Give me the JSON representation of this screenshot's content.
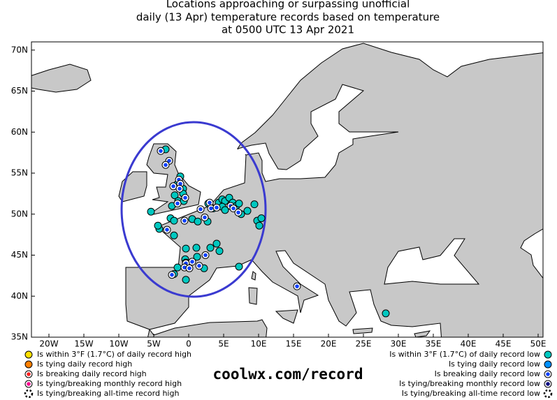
{
  "title": [
    "Locations approaching or surpassing unofficial",
    "daily (13 Apr) temperature records based on temperature",
    "at 0500 UTC 13 Apr 2021"
  ],
  "map": {
    "xlim": [
      -22.5,
      50.7
    ],
    "ylim": [
      35,
      71
    ],
    "xticks": [
      {
        "value": -20,
        "label": "20W"
      },
      {
        "value": -15,
        "label": "15W"
      },
      {
        "value": -10,
        "label": "10W"
      },
      {
        "value": -5,
        "label": "5W"
      },
      0,
      {
        "value": 5,
        "label": "5E"
      },
      {
        "value": 10,
        "label": "10E"
      },
      {
        "value": 15,
        "label": "15E"
      },
      {
        "value": 20,
        "label": "20E"
      },
      {
        "value": 25,
        "label": "25E"
      },
      {
        "value": 30,
        "label": "30E"
      },
      {
        "value": 35,
        "label": "35E"
      },
      {
        "value": 40,
        "label": "40E"
      },
      {
        "value": 45,
        "label": "45E"
      },
      {
        "value": 50,
        "label": "50E"
      }
    ],
    "yticks": [
      {
        "value": 70,
        "label": "70N"
      },
      {
        "value": 65,
        "label": "65N"
      },
      {
        "value": 60,
        "label": "60N"
      },
      {
        "value": 55,
        "label": "55N"
      },
      {
        "value": 50,
        "label": "50N"
      },
      {
        "value": 45,
        "label": "45N"
      },
      {
        "value": 40,
        "label": "40N"
      },
      {
        "value": 35,
        "label": "35N"
      }
    ]
  },
  "site": "coolwx.com/record",
  "legend": {
    "high": [
      {
        "label": "Is within 3°F (1.7°C) of daily record high",
        "color": "#ffe000"
      },
      {
        "label": "Is tying daily record high",
        "color": "#ff8000"
      },
      {
        "label": "Is breaking daily record high",
        "color": "#ff2020",
        "ring": true
      },
      {
        "label": "Is tying/breaking monthly record high",
        "color": "#ff0090",
        "ring": true
      },
      {
        "label": "Is tying/breaking all-time record high",
        "color": "#ffffff",
        "dashed": true
      }
    ],
    "low": [
      {
        "label": "Is within 3°F (1.7°C) of daily record low",
        "color": "#00c8c0",
        "points": [
          [
            -3.3,
            57.9
          ],
          [
            -1.2,
            54.6
          ],
          [
            -0.8,
            53.1
          ],
          [
            -1.7,
            53.6
          ],
          [
            -0.8,
            52.5
          ],
          [
            -2.0,
            52.3
          ],
          [
            -1.5,
            51.6
          ],
          [
            -2.4,
            51.0
          ],
          [
            -0.7,
            51.6
          ],
          [
            -5.4,
            50.3
          ],
          [
            2.8,
            51.3
          ],
          [
            4.3,
            51.4
          ],
          [
            4.8,
            51.8
          ],
          [
            5.2,
            51.6
          ],
          [
            4.8,
            50.9
          ],
          [
            3.5,
            50.7
          ],
          [
            5.8,
            52.0
          ],
          [
            6.3,
            51.4
          ],
          [
            6.8,
            51.0
          ],
          [
            7.2,
            51.3
          ],
          [
            8.4,
            50.4
          ],
          [
            9.4,
            51.2
          ],
          [
            5.2,
            50.5
          ],
          [
            7.5,
            50.0
          ],
          [
            9.8,
            49.2
          ],
          [
            10.4,
            49.5
          ],
          [
            10.1,
            48.6
          ],
          [
            -2.6,
            49.5
          ],
          [
            -2.1,
            49.2
          ],
          [
            0.5,
            49.4
          ],
          [
            1.3,
            49.1
          ],
          [
            2.7,
            49.1
          ],
          [
            -4.2,
            48.2
          ],
          [
            -4.4,
            48.6
          ],
          [
            -2.1,
            47.4
          ],
          [
            -0.4,
            45.8
          ],
          [
            1.1,
            45.9
          ],
          [
            3.1,
            45.9
          ],
          [
            4.0,
            46.4
          ],
          [
            4.4,
            45.5
          ],
          [
            1.2,
            44.8
          ],
          [
            -0.5,
            44.5
          ],
          [
            -0.4,
            44.1
          ],
          [
            -1.6,
            43.5
          ],
          [
            2.2,
            43.4
          ],
          [
            -0.4,
            42.0
          ],
          [
            -2.1,
            42.7
          ],
          [
            7.2,
            43.6
          ],
          [
            28.2,
            37.9
          ]
        ]
      },
      {
        "label": "Is tying daily record low",
        "color": "#0090ff"
      },
      {
        "label": "Is breaking daily record low",
        "color": "#1040ff",
        "ring": true,
        "points": [
          [
            -4.0,
            57.7
          ],
          [
            -2.8,
            56.5
          ],
          [
            -3.3,
            56.0
          ],
          [
            -1.4,
            54.2
          ],
          [
            -1.2,
            53.7
          ],
          [
            -2.2,
            53.4
          ],
          [
            -1.3,
            53.1
          ],
          [
            -0.5,
            52.0
          ],
          [
            -1.6,
            51.3
          ],
          [
            1.7,
            50.6
          ],
          [
            3.0,
            51.4
          ],
          [
            3.2,
            50.7
          ],
          [
            4.0,
            50.8
          ],
          [
            6.0,
            51.0
          ],
          [
            6.4,
            50.7
          ],
          [
            7.1,
            50.2
          ],
          [
            -0.6,
            49.2
          ],
          [
            2.3,
            49.6
          ],
          [
            -3.1,
            48.1
          ],
          [
            2.4,
            45.0
          ],
          [
            0.5,
            44.2
          ],
          [
            -0.4,
            44.0
          ],
          [
            -0.6,
            43.5
          ],
          [
            0.1,
            43.4
          ],
          [
            1.5,
            43.7
          ],
          [
            -2.4,
            42.6
          ],
          [
            15.5,
            41.2
          ]
        ]
      },
      {
        "label": "Is tying/breaking monthly record low",
        "color": "#000080",
        "ring": true
      },
      {
        "label": "Is tying/breaking all-time record low",
        "color": "#ffffff",
        "dashed": true
      }
    ]
  }
}
